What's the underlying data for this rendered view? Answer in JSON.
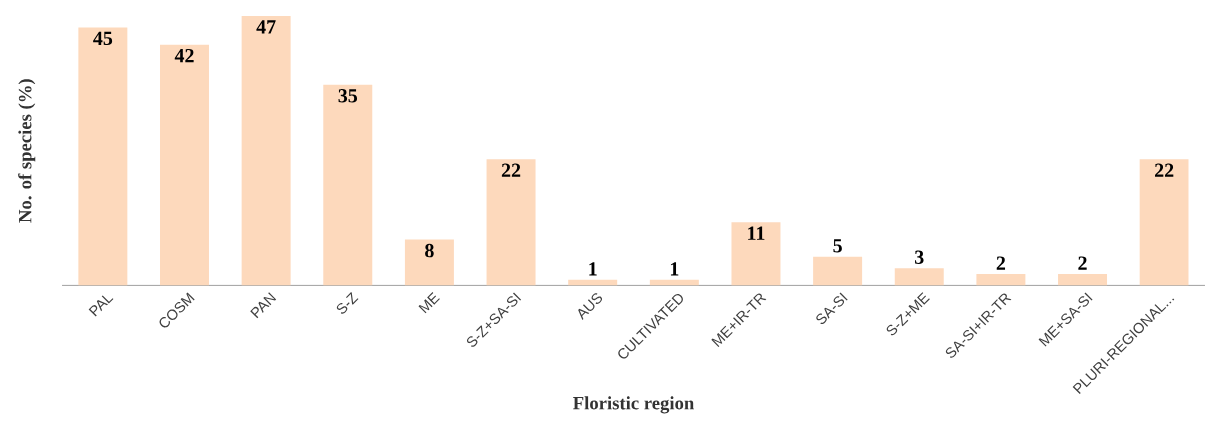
{
  "chart_data": {
    "type": "bar",
    "xlabel": "Floristic region",
    "ylabel": "No. of species (%)",
    "categories": [
      "PAL",
      "COSM",
      "PAN",
      "S-Z",
      "ME",
      "S-Z+SA-SI",
      "AUS",
      "CULTIVATED",
      "ME+IR-TR",
      "SA-SI",
      "S-Z+ME",
      "SA-SI+IR-TR",
      "ME+SA-SI",
      "PLURI-REGIONAL..."
    ],
    "values": [
      45,
      42,
      47,
      35,
      8,
      22,
      1,
      1,
      11,
      5,
      3,
      2,
      2,
      22
    ],
    "color": "#fdd9bc",
    "data_labels": true
  }
}
